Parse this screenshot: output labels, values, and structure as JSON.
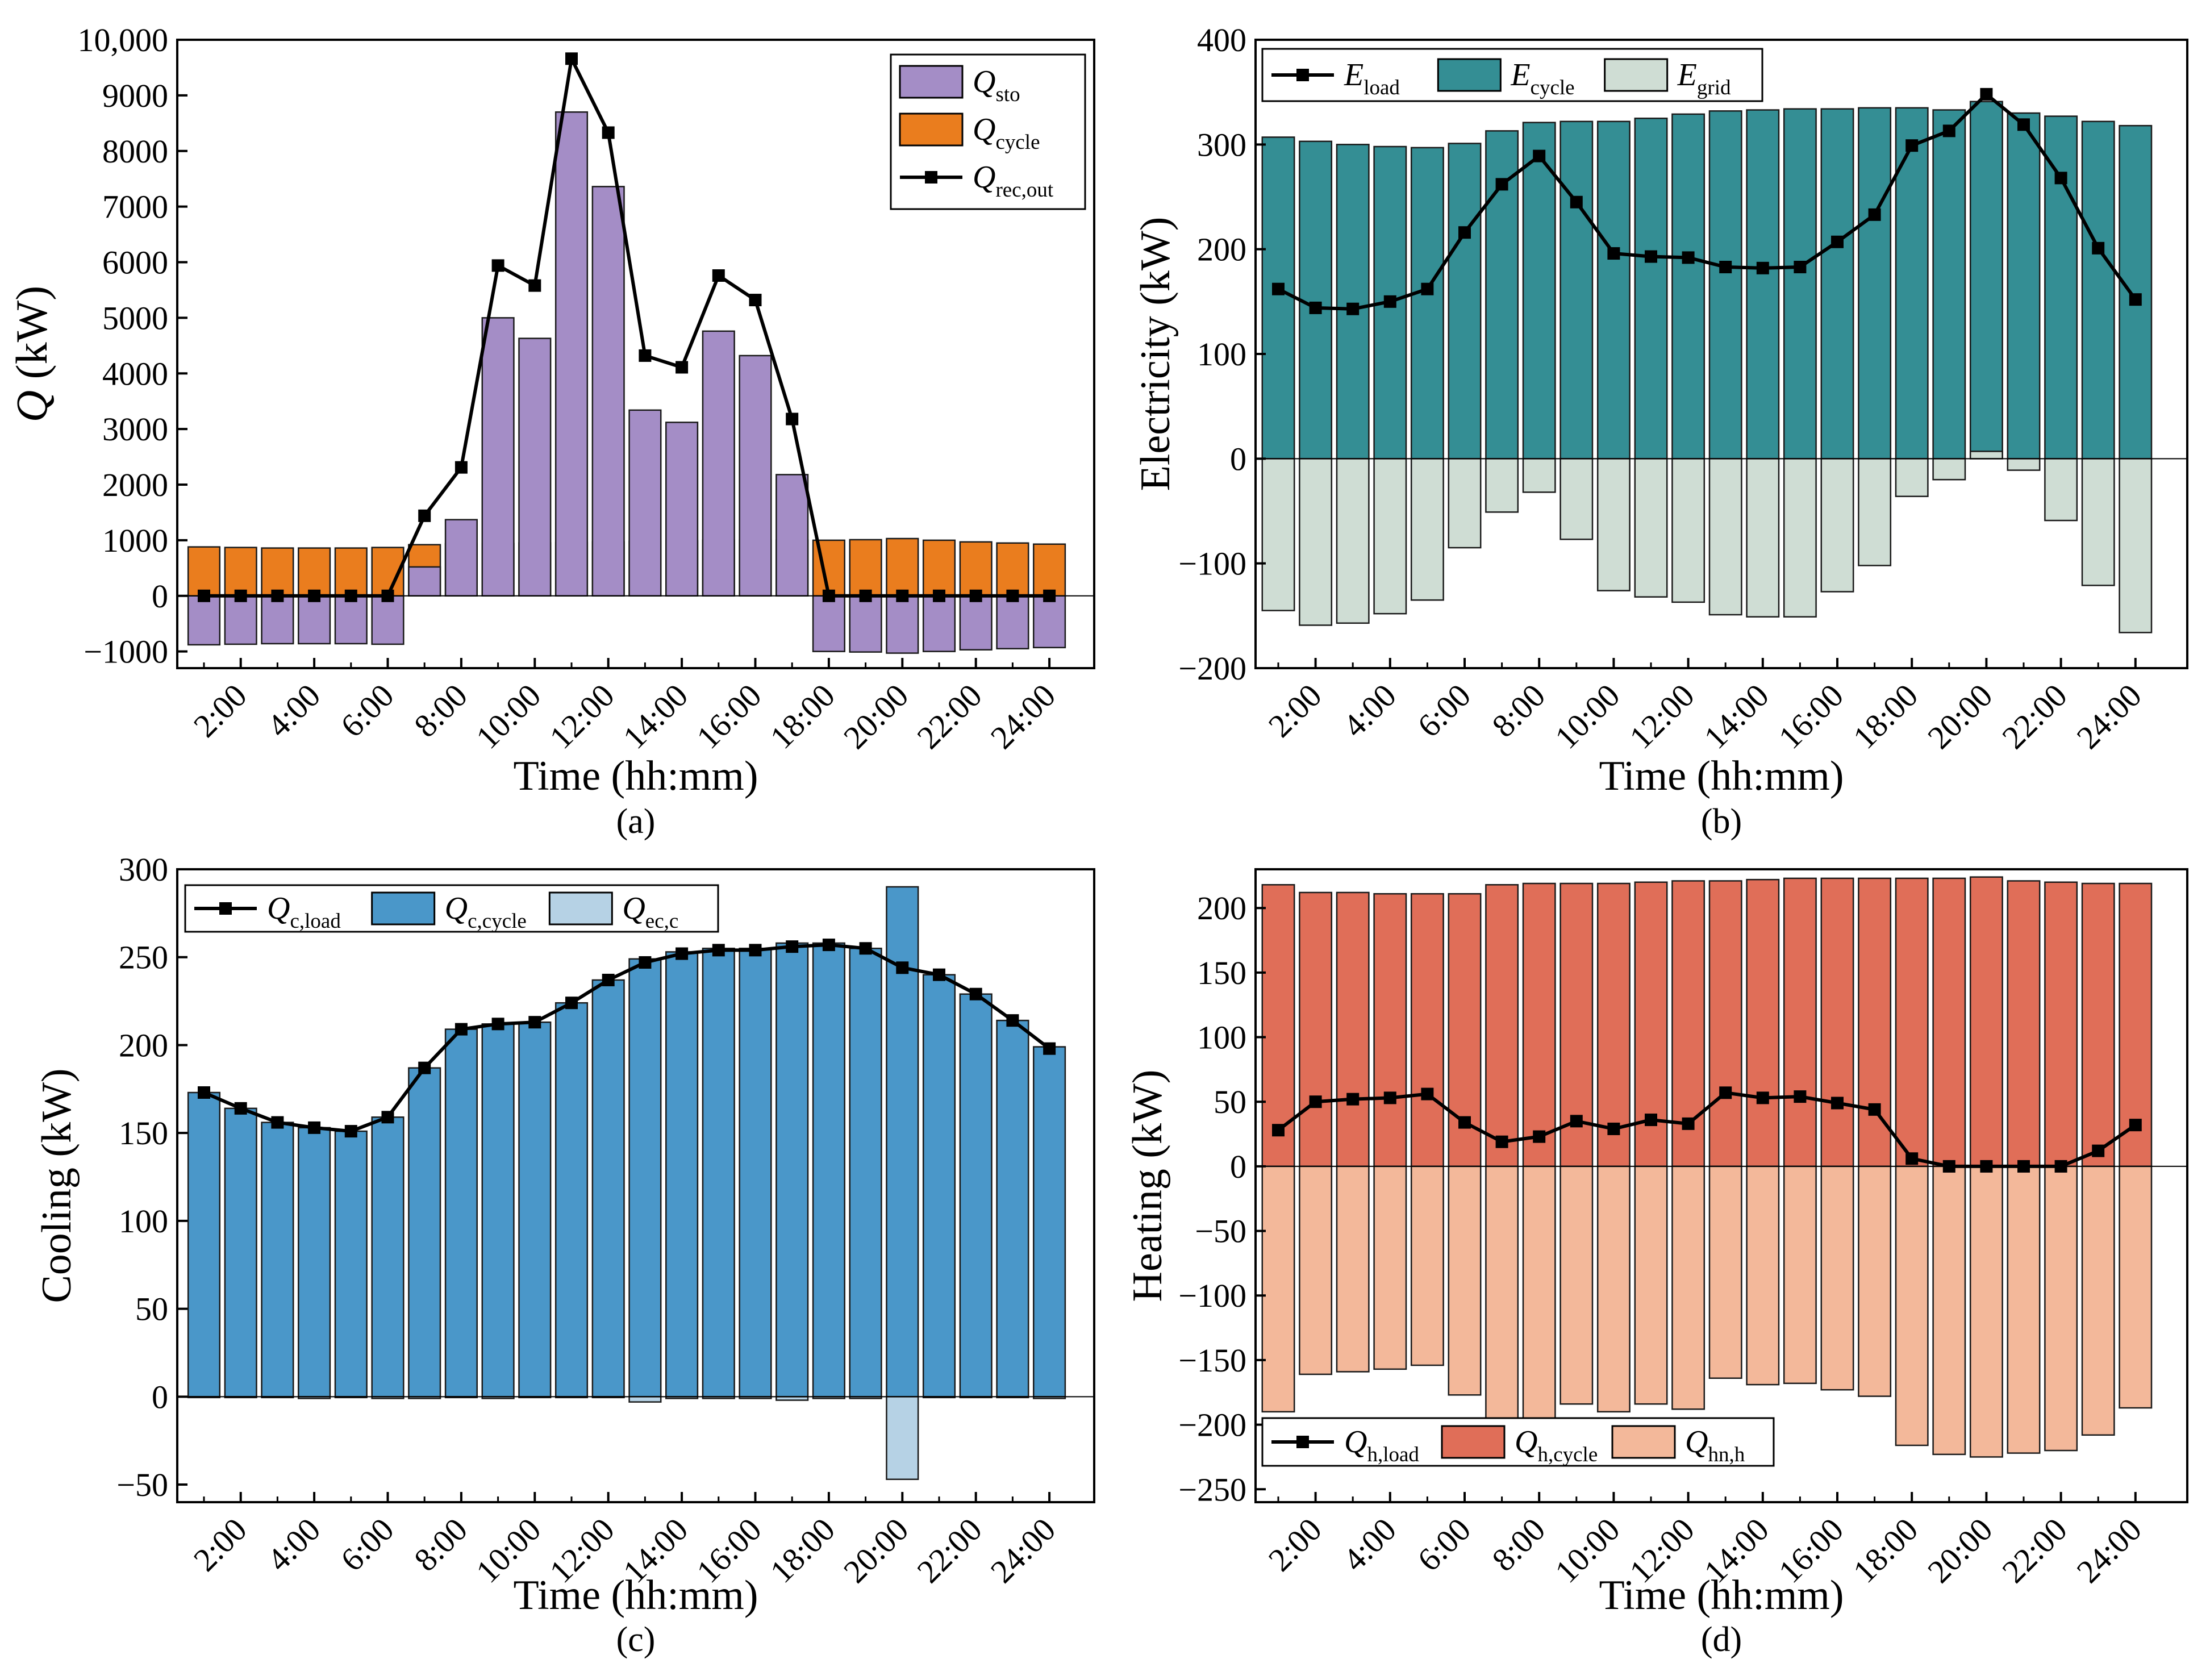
{
  "figure": {
    "panels": [
      "a",
      "b",
      "c",
      "d"
    ]
  },
  "chart_data": [
    {
      "id": "a",
      "type": "bar",
      "caption": "(a)",
      "ylabel_main": "Q",
      "ylabel_unit": " (kW)",
      "xlabel": "Time (hh:mm)",
      "ylim": [
        -1300,
        10000
      ],
      "yticks": [
        -1000,
        0,
        1000,
        2000,
        3000,
        4000,
        5000,
        6000,
        7000,
        8000,
        9000
      ],
      "ytick_labels": [
        "−1000",
        "0",
        "1000",
        "2000",
        "3000",
        "4000",
        "5000",
        "6000",
        "7000",
        "8000",
        "9000"
      ],
      "ytop_label": "10,000",
      "xtick_labels": [
        "2:00",
        "4:00",
        "6:00",
        "8:00",
        "10:00",
        "12:00",
        "14:00",
        "16:00",
        "18:00",
        "20:00",
        "22:00",
        "24:00"
      ],
      "hours": [
        1,
        2,
        3,
        4,
        5,
        6,
        7,
        8,
        9,
        10,
        11,
        12,
        13,
        14,
        15,
        16,
        17,
        18,
        19,
        20,
        21,
        22,
        23,
        24
      ],
      "legend_pos": "top-right",
      "series": [
        {
          "name": "Q",
          "sub": "cycle",
          "kind": "bar",
          "color": "#ea7d1e",
          "values": [
            880,
            870,
            860,
            860,
            860,
            870,
            920,
            940,
            940,
            950,
            960,
            970,
            980,
            990,
            1000,
            1000,
            1000,
            1000,
            1010,
            1030,
            1000,
            970,
            950,
            930
          ]
        },
        {
          "name": "Q",
          "sub": "sto",
          "kind": "bar",
          "color": "#a48dc6",
          "values": [
            -880,
            -870,
            -860,
            -860,
            -860,
            -870,
            520,
            1370,
            5000,
            4630,
            8700,
            7360,
            3340,
            3120,
            4760,
            4320,
            2180,
            -1000,
            -1010,
            -1030,
            -1000,
            -970,
            -950,
            -930
          ]
        },
        {
          "name": "Q",
          "sub": "rec,out",
          "kind": "line",
          "color": "#000000",
          "values": [
            0,
            0,
            0,
            0,
            0,
            0,
            1440,
            2310,
            5940,
            5580,
            9660,
            8330,
            4320,
            4110,
            5760,
            5320,
            3180,
            0,
            0,
            0,
            0,
            0,
            0,
            0
          ]
        }
      ]
    },
    {
      "id": "b",
      "type": "bar",
      "caption": "(b)",
      "ylabel": "Electricity (kW)",
      "xlabel": "Time (hh:mm)",
      "ylim": [
        -200,
        400
      ],
      "yticks": [
        -200,
        -100,
        0,
        100,
        200,
        300,
        400
      ],
      "ytick_labels": [
        "−200",
        "−100",
        "0",
        "100",
        "200",
        "300",
        "400"
      ],
      "xtick_labels": [
        "2:00",
        "4:00",
        "6:00",
        "8:00",
        "10:00",
        "12:00",
        "14:00",
        "16:00",
        "18:00",
        "20:00",
        "22:00",
        "24:00"
      ],
      "hours": [
        1,
        2,
        3,
        4,
        5,
        6,
        7,
        8,
        9,
        10,
        11,
        12,
        13,
        14,
        15,
        16,
        17,
        18,
        19,
        20,
        21,
        22,
        23,
        24
      ],
      "legend_pos": "top-left",
      "series": [
        {
          "name": "E",
          "sub": "load",
          "kind": "line",
          "color": "#000000",
          "values": [
            162,
            144,
            143,
            150,
            162,
            216,
            262,
            289,
            245,
            196,
            193,
            192,
            183,
            182,
            183,
            207,
            233,
            299,
            313,
            348,
            319,
            268,
            201,
            152
          ]
        },
        {
          "name": "E",
          "sub": "cycle",
          "kind": "bar",
          "color": "#348e94",
          "values": [
            307,
            303,
            300,
            298,
            297,
            301,
            313,
            321,
            322,
            322,
            325,
            329,
            332,
            333,
            334,
            334,
            335,
            335,
            333,
            341,
            330,
            327,
            322,
            318
          ]
        },
        {
          "name": "E",
          "sub": "grid",
          "kind": "bar",
          "color": "#cfddd4",
          "values": [
            -145,
            -159,
            -157,
            -148,
            -135,
            -85,
            -51,
            -32,
            -77,
            -126,
            -132,
            -137,
            -149,
            -151,
            -151,
            -127,
            -102,
            -36,
            -20,
            7,
            -11,
            -59,
            -121,
            -166
          ]
        }
      ]
    },
    {
      "id": "c",
      "type": "bar",
      "caption": "(c)",
      "ylabel": "Cooling (kW)",
      "xlabel": "Time (hh:mm)",
      "ylim": [
        -60,
        300
      ],
      "yticks": [
        -50,
        0,
        50,
        100,
        150,
        200,
        250,
        300
      ],
      "ytick_labels": [
        "−50",
        "0",
        "50",
        "100",
        "150",
        "200",
        "250",
        "300"
      ],
      "xtick_labels": [
        "2:00",
        "4:00",
        "6:00",
        "8:00",
        "10:00",
        "12:00",
        "14:00",
        "16:00",
        "18:00",
        "20:00",
        "22:00",
        "24:00"
      ],
      "hours": [
        1,
        2,
        3,
        4,
        5,
        6,
        7,
        8,
        9,
        10,
        11,
        12,
        13,
        14,
        15,
        16,
        17,
        18,
        19,
        20,
        21,
        22,
        23,
        24
      ],
      "legend_pos": "top-left",
      "series": [
        {
          "name": "Q",
          "sub": "c,load",
          "kind": "line",
          "color": "#000000",
          "values": [
            173,
            164,
            156,
            153,
            151,
            159,
            187,
            209,
            212,
            213,
            224,
            237,
            247,
            252,
            254,
            254,
            256,
            257,
            255,
            244,
            240,
            229,
            214,
            198
          ]
        },
        {
          "name": "Q",
          "sub": "c,cycle",
          "kind": "bar",
          "color": "#4a97c9",
          "values": [
            173,
            164,
            156,
            153,
            151,
            159,
            187,
            209,
            212,
            213,
            224,
            237,
            249,
            253,
            255,
            255,
            258,
            258,
            255,
            290,
            240,
            229,
            214,
            199
          ]
        },
        {
          "name": "Q",
          "sub": "ec,c",
          "kind": "bar",
          "color": "#b6d2e5",
          "values": [
            0,
            0,
            0,
            -1,
            0,
            -1,
            -1,
            0,
            -1,
            0,
            0,
            0,
            -3,
            -1,
            -1,
            -1,
            -2,
            -1,
            -1,
            -47,
            0,
            0,
            0,
            -1
          ]
        }
      ]
    },
    {
      "id": "d",
      "type": "bar",
      "caption": "(d)",
      "ylabel": "Heating (kW)",
      "xlabel": "Time (hh:mm)",
      "ylim": [
        -260,
        230
      ],
      "yticks": [
        -250,
        -200,
        -150,
        -100,
        -50,
        0,
        50,
        100,
        150,
        200
      ],
      "ytick_labels": [
        "−250",
        "−200",
        "−150",
        "−100",
        "−50",
        "0",
        "50",
        "100",
        "150",
        "200"
      ],
      "xtick_labels": [
        "2:00",
        "4:00",
        "6:00",
        "8:00",
        "10:00",
        "12:00",
        "14:00",
        "16:00",
        "18:00",
        "20:00",
        "22:00",
        "24:00"
      ],
      "hours": [
        1,
        2,
        3,
        4,
        5,
        6,
        7,
        8,
        9,
        10,
        11,
        12,
        13,
        14,
        15,
        16,
        17,
        18,
        19,
        20,
        21,
        22,
        23,
        24
      ],
      "legend_pos": "bottom-left",
      "series": [
        {
          "name": "Q",
          "sub": "h,load",
          "kind": "line",
          "color": "#000000",
          "values": [
            28,
            50,
            52,
            53,
            56,
            34,
            19,
            23,
            35,
            29,
            36,
            33,
            57,
            53,
            54,
            49,
            44,
            6,
            0,
            0,
            0,
            0,
            12,
            32
          ]
        },
        {
          "name": "Q",
          "sub": "h,cycle",
          "kind": "bar",
          "color": "#e06e58",
          "values": [
            218,
            212,
            212,
            211,
            211,
            211,
            218,
            219,
            219,
            219,
            220,
            221,
            221,
            222,
            223,
            223,
            223,
            223,
            223,
            224,
            221,
            220,
            219,
            219
          ]
        },
        {
          "name": "Q",
          "sub": "hn,h",
          "kind": "bar",
          "color": "#f3b89a",
          "values": [
            -190,
            -161,
            -159,
            -157,
            -154,
            -177,
            -199,
            -196,
            -184,
            -190,
            -184,
            -188,
            -164,
            -169,
            -168,
            -173,
            -178,
            -216,
            -223,
            -225,
            -222,
            -220,
            -208,
            -187
          ]
        }
      ]
    }
  ]
}
